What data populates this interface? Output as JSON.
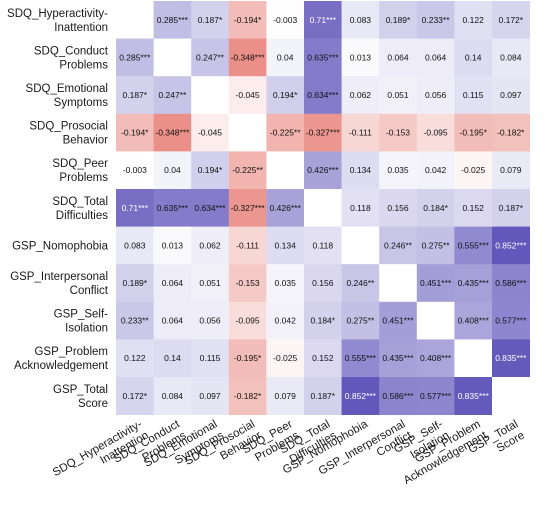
{
  "chart_data": {
    "type": "heatmap",
    "row_labels": [
      [
        "SDQ_Hyperactivity-",
        "Inattention"
      ],
      [
        "SDQ_Conduct",
        "Problems"
      ],
      [
        "SDQ_Emotional",
        "Symptoms"
      ],
      [
        "SDQ_Prosocial",
        "Behavior"
      ],
      [
        "SDQ_Peer",
        "Problems"
      ],
      [
        "SDQ_Total",
        "Difficulties"
      ],
      [
        "GSP_Nomophobia"
      ],
      [
        "GSP_Interpersonal",
        "Conflict"
      ],
      [
        "GSP_Self-",
        "Isolation"
      ],
      [
        "GSP_Problem",
        "Acknowledgement"
      ],
      [
        "GSP_Total",
        "Score"
      ]
    ],
    "col_labels": [
      [
        "SDQ_Hyperactivity-",
        "Inattention"
      ],
      [
        "SDQ_Conduct",
        "Problems"
      ],
      [
        "SDQ_Emotional",
        "Symptoms"
      ],
      [
        "SDQ_Prosocial",
        "Behavior"
      ],
      [
        "SDQ_Peer",
        "Problems"
      ],
      [
        "SDQ_Total",
        "Difficulties"
      ],
      [
        "GSP_Nomophobia"
      ],
      [
        "GSP_Interpersonal",
        "Conflict"
      ],
      [
        "GSP_Self-",
        "Isolation"
      ],
      [
        "GSP_Problem",
        "Acknowledgement"
      ],
      [
        "GSP_Total",
        "Score"
      ]
    ],
    "cells": [
      [
        null,
        "0.285***",
        "0.187*",
        "-0.194*",
        "-0.003",
        "0.71***",
        "0.083",
        "0.189*",
        "0.233**",
        "0.122",
        "0.172*"
      ],
      [
        "0.285***",
        null,
        "0.247**",
        "-0.348***",
        "0.04",
        "0.635***",
        "0.013",
        "0.064",
        "0.064",
        "0.14",
        "0.084"
      ],
      [
        "0.187*",
        "0.247**",
        null,
        "-0.045",
        "0.194*",
        "0.634***",
        "0.062",
        "0.051",
        "0.056",
        "0.115",
        "0.097"
      ],
      [
        "-0.194*",
        "-0.348***",
        "-0.045",
        null,
        "-0.225**",
        "-0.327***",
        "-0.111",
        "-0.153",
        "-0.095",
        "-0.195*",
        "-0.182*"
      ],
      [
        "-0.003",
        "0.04",
        "0.194*",
        "-0.225**",
        null,
        "0.426***",
        "0.134",
        "0.035",
        "0.042",
        "-0.025",
        "0.079"
      ],
      [
        "0.71***",
        "0.635***",
        "0.634***",
        "-0.327***",
        "0.426***",
        null,
        "0.118",
        "0.156",
        "0.184*",
        "0.152",
        "0.187*"
      ],
      [
        "0.083",
        "0.013",
        "0.062",
        "-0.111",
        "0.134",
        "0.118",
        null,
        "0.246**",
        "0.275**",
        "0.555***",
        "0.852***"
      ],
      [
        "0.189*",
        "0.064",
        "0.051",
        "-0.153",
        "0.035",
        "0.156",
        "0.246**",
        null,
        "0.451***",
        "0.435***",
        "0.586***"
      ],
      [
        "0.233**",
        "0.064",
        "0.056",
        "-0.095",
        "0.042",
        "0.184*",
        "0.275**",
        "0.451***",
        null,
        "0.408***",
        "0.577***"
      ],
      [
        "0.122",
        "0.14",
        "0.115",
        "-0.195*",
        "-0.025",
        "0.152",
        "0.555***",
        "0.435***",
        "0.408***",
        null,
        "0.835***"
      ],
      [
        "0.172*",
        "0.084",
        "0.097",
        "-0.182*",
        "0.079",
        "0.187*",
        "0.852***",
        "0.586***",
        "0.577***",
        "0.835***",
        null
      ]
    ],
    "colors": {
      "positive_max": "#5a4fb8",
      "negative_max": "#e8877e",
      "zero": "#ffffff",
      "diagonal": "#ffffff"
    }
  }
}
